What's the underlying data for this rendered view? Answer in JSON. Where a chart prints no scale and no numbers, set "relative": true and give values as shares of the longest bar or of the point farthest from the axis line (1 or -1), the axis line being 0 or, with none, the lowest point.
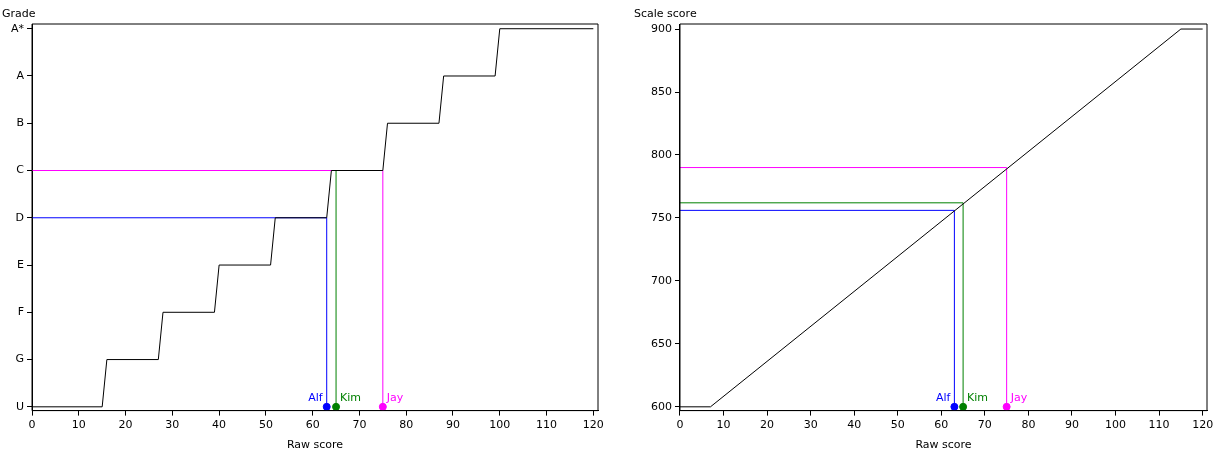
{
  "chart_data": [
    {
      "type": "line",
      "ylabel": "Grade",
      "xlabel": "Raw score",
      "xlim": [
        0,
        121
      ],
      "xticks": [
        0,
        10,
        20,
        30,
        40,
        50,
        60,
        70,
        80,
        90,
        100,
        110,
        120
      ],
      "y_categories": [
        "A*",
        "A",
        "B",
        "C",
        "D",
        "E",
        "F",
        "G",
        "U"
      ],
      "relative": true,
      "grid": false,
      "legend": false,
      "series": [
        {
          "color": "#000000",
          "x": [
            0,
            15,
            16,
            27,
            28,
            39,
            40,
            51,
            52,
            63,
            64,
            75,
            76,
            87,
            88,
            99,
            100,
            120
          ],
          "values": [
            0,
            0,
            0.125,
            0.125,
            0.25,
            0.25,
            0.375,
            0.375,
            0.5,
            0.5,
            0.625,
            0.625,
            0.75,
            0.75,
            0.875,
            0.875,
            1,
            1
          ]
        },
        {
          "color": "#0000ff",
          "x": [
            63,
            63,
            0
          ],
          "values": [
            0,
            0.5,
            0.5
          ]
        },
        {
          "color": "#008000",
          "x": [
            65,
            65
          ],
          "values": [
            0,
            0.625
          ]
        },
        {
          "color": "#ff00ff",
          "x": [
            75,
            75,
            0
          ],
          "values": [
            0,
            0.625,
            0.625
          ]
        },
        {
          "name": "Alf",
          "type": "scatter",
          "color": "#0000ff",
          "marker": "circle",
          "x": [
            63
          ],
          "values": [
            0
          ]
        },
        {
          "name": "Kim",
          "type": "scatter",
          "color": "#008000",
          "marker": "circle",
          "x": [
            65
          ],
          "values": [
            0
          ]
        },
        {
          "name": "Jay",
          "type": "scatter",
          "color": "#ff00ff",
          "marker": "circle",
          "x": [
            75
          ],
          "values": [
            0
          ]
        }
      ]
    },
    {
      "type": "line",
      "ylabel": "Scale score",
      "xlabel": "Raw score",
      "xlim": [
        0,
        121
      ],
      "ylim": [
        597,
        904
      ],
      "xticks": [
        0,
        10,
        20,
        30,
        40,
        50,
        60,
        70,
        80,
        90,
        100,
        110,
        120
      ],
      "yticks": [
        600,
        650,
        700,
        750,
        800,
        850,
        900
      ],
      "grid": false,
      "legend": false,
      "series": [
        {
          "color": "#000000",
          "x": [
            0,
            7,
            115,
            120
          ],
          "values": [
            600,
            600,
            900,
            900
          ]
        },
        {
          "color": "#0000ff",
          "x": [
            63,
            63,
            0
          ],
          "values": [
            600,
            756,
            756
          ]
        },
        {
          "color": "#008000",
          "x": [
            65,
            65,
            0
          ],
          "values": [
            600,
            762,
            762
          ]
        },
        {
          "color": "#ff00ff",
          "x": [
            75,
            75,
            0
          ],
          "values": [
            600,
            790,
            790
          ]
        },
        {
          "name": "Alf",
          "type": "scatter",
          "color": "#0000ff",
          "marker": "circle",
          "x": [
            63
          ],
          "values": [
            600
          ]
        },
        {
          "name": "Kim",
          "type": "scatter",
          "color": "#008000",
          "marker": "circle",
          "x": [
            65
          ],
          "values": [
            600
          ]
        },
        {
          "name": "Jay",
          "type": "scatter",
          "color": "#ff00ff",
          "marker": "circle",
          "x": [
            75
          ],
          "values": [
            600
          ]
        }
      ]
    }
  ]
}
